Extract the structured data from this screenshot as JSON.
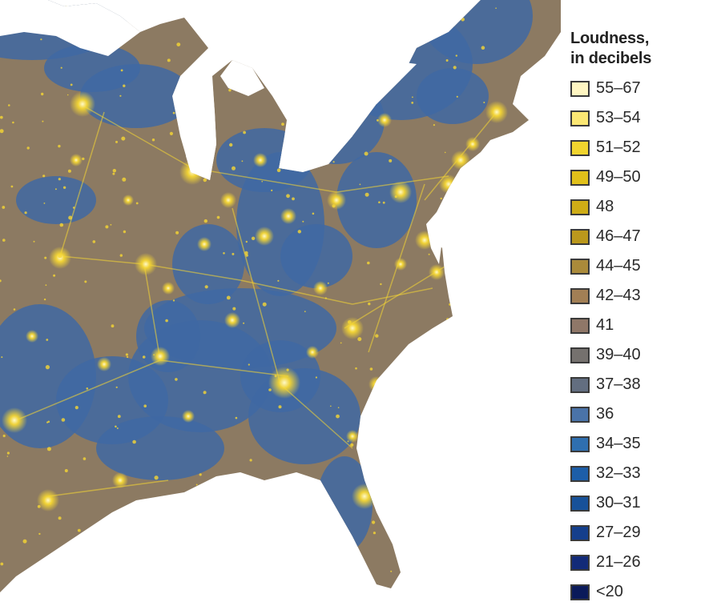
{
  "legend": {
    "title_line1": "Loudness,",
    "title_line2": "in decibels",
    "items": [
      {
        "label": "55–67",
        "color": "#fff6c2"
      },
      {
        "label": "53–54",
        "color": "#fbe773"
      },
      {
        "label": "51–52",
        "color": "#f1d52f"
      },
      {
        "label": "49–50",
        "color": "#e0c01a"
      },
      {
        "label": "48",
        "color": "#ceac16"
      },
      {
        "label": "46–47",
        "color": "#bb981c"
      },
      {
        "label": "44–45",
        "color": "#aa8a3a"
      },
      {
        "label": "42–43",
        "color": "#a27f55"
      },
      {
        "label": "41",
        "color": "#8f7768"
      },
      {
        "label": "39–40",
        "color": "#75716e"
      },
      {
        "label": "37–38",
        "color": "#636e80"
      },
      {
        "label": "36",
        "color": "#4a73a8"
      },
      {
        "label": "34–35",
        "color": "#2f6fb0"
      },
      {
        "label": "32–33",
        "color": "#1d5ea8"
      },
      {
        "label": "30–31",
        "color": "#175199"
      },
      {
        "label": "27–29",
        "color": "#153f8c"
      },
      {
        "label": "21–26",
        "color": "#122a78"
      },
      {
        "label": "<20",
        "color": "#0a1a5a"
      }
    ]
  },
  "map": {
    "land_color": "#8c7a62",
    "water_color": "#ffffff",
    "quiet_color": "#3f69a3",
    "light_color": "#f6d733"
  }
}
